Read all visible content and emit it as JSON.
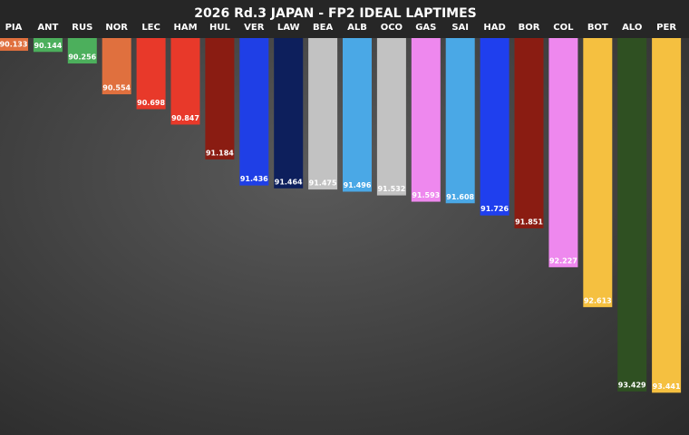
{
  "chart_data": {
    "type": "bar",
    "title": "2026 Rd.3 JAPAN - FP2 IDEAL LAPTIMES",
    "categories": [
      "PIA",
      "ANT",
      "RUS",
      "NOR",
      "LEC",
      "HAM",
      "HUL",
      "VER",
      "LAW",
      "BEA",
      "ALB",
      "OCO",
      "GAS",
      "SAI",
      "HAD",
      "BOR",
      "COL",
      "BOT",
      "ALO",
      "PER"
    ],
    "values": [
      90.133,
      90.144,
      90.256,
      90.554,
      90.698,
      90.847,
      91.184,
      91.436,
      91.464,
      91.475,
      91.496,
      91.532,
      91.593,
      91.608,
      91.726,
      91.851,
      92.227,
      92.613,
      93.429,
      93.441
    ],
    "colors": [
      "#e0703e",
      "#4caf5c",
      "#4caf5c",
      "#e0703e",
      "#e8392a",
      "#e8392a",
      "#8a1c12",
      "#1f3fe6",
      "#0d1f5c",
      "#c2c2c2",
      "#4aa8e6",
      "#c2c2c2",
      "#ee88ee",
      "#4aa8e6",
      "#1f3fee",
      "#8a1c12",
      "#ee88ee",
      "#f5c040",
      "#2f5022",
      "#f5c040"
    ],
    "ylim": [
      90.01,
      93.85
    ],
    "orientation": "top-down"
  }
}
